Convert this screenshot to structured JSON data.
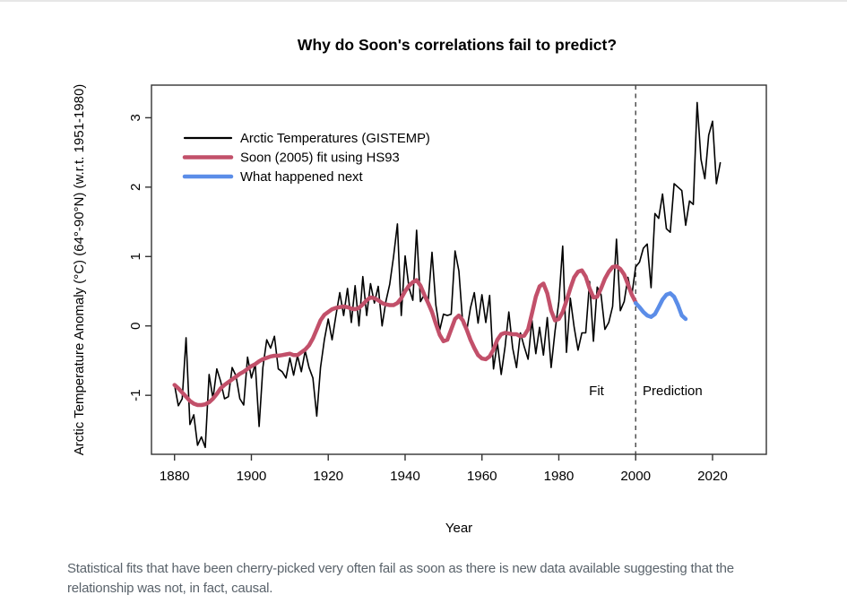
{
  "page": {
    "caption": "Statistical fits that have been cherry-picked very often fail as soon as there is new data available suggesting that the relationship was not, in fact, causal."
  },
  "chart_data": {
    "type": "line",
    "title": "Why do Soon's correlations fail to predict?",
    "xlabel": "Year",
    "ylabel": "Arctic Temperature Anomaly (°C) (64°-90°N) (w.r.t. 1951-1980)",
    "xlim": [
      1874,
      2034
    ],
    "ylim": [
      -1.85,
      3.47
    ],
    "x_ticks": [
      1880,
      1900,
      1920,
      1940,
      1960,
      1980,
      2000,
      2020
    ],
    "y_ticks": [
      -1,
      0,
      1,
      2,
      3
    ],
    "grid": false,
    "legend_position": "top-left-inside",
    "frame_color": "#333333",
    "vline": {
      "x": 2000,
      "style": "dashed",
      "color": "#444444"
    },
    "annotations": [
      {
        "text": "Fit",
        "x": 1989.8,
        "y": -1.0,
        "color": "#c2506a"
      },
      {
        "text": "Prediction",
        "x": 2009.6,
        "y": -1.0,
        "color": "#5b8de8"
      }
    ],
    "series": [
      {
        "name": "Arctic Temperatures (GISTEMP)",
        "color": "#000000",
        "line_width": 1.6,
        "x_start": 1880,
        "x_step": 1,
        "values": [
          -0.85,
          -1.15,
          -1.05,
          -0.17,
          -1.42,
          -1.28,
          -1.72,
          -1.6,
          -1.75,
          -0.7,
          -1.05,
          -0.62,
          -0.8,
          -1.05,
          -1.02,
          -0.6,
          -0.72,
          -1.05,
          -1.14,
          -0.45,
          -0.75,
          -0.55,
          -1.45,
          -0.6,
          -0.2,
          -0.32,
          -0.15,
          -0.62,
          -0.66,
          -0.75,
          -0.46,
          -0.71,
          -0.43,
          -0.66,
          -0.36,
          -0.6,
          -0.75,
          -1.3,
          -0.6,
          -0.2,
          0.1,
          -0.2,
          0.15,
          0.48,
          0.15,
          0.54,
          0.05,
          0.58,
          0.0,
          0.71,
          0.15,
          0.61,
          0.33,
          0.57,
          0.0,
          0.35,
          0.6,
          1.0,
          1.47,
          0.15,
          1.01,
          0.55,
          0.37,
          1.38,
          0.35,
          0.45,
          0.35,
          1.06,
          0.3,
          -0.06,
          0.17,
          0.15,
          0.17,
          1.08,
          0.79,
          0.03,
          -0.08,
          0.26,
          0.48,
          0.04,
          0.45,
          0.05,
          0.44,
          -0.62,
          -0.24,
          -0.7,
          -0.3,
          0.2,
          -0.32,
          -0.6,
          -0.1,
          -0.3,
          -0.48,
          0.08,
          -0.4,
          -0.02,
          -0.42,
          0.12,
          -0.6,
          -0.08,
          0.35,
          1.15,
          -0.38,
          0.4,
          -0.02,
          -0.35,
          -0.1,
          -0.1,
          0.64,
          -0.22,
          0.56,
          0.45,
          -0.05,
          0.05,
          0.28,
          1.25,
          0.22,
          0.35,
          0.7,
          0.44,
          0.85,
          0.92,
          1.12,
          1.18,
          0.55,
          1.62,
          1.55,
          1.9,
          1.4,
          1.35,
          2.05,
          2.0,
          1.95,
          1.45,
          1.8,
          1.75,
          3.22,
          2.4,
          2.12,
          2.75,
          2.95,
          2.05,
          2.35
        ]
      },
      {
        "name": "Soon (2005) fit using HS93",
        "color": "#c2506a",
        "line_width": 4.5,
        "x_start": 1880,
        "x_step": 1,
        "values": [
          -0.85,
          -0.9,
          -0.96,
          -1.02,
          -1.08,
          -1.12,
          -1.14,
          -1.14,
          -1.13,
          -1.1,
          -1.05,
          -0.98,
          -0.9,
          -0.85,
          -0.81,
          -0.77,
          -0.73,
          -0.69,
          -0.66,
          -0.62,
          -0.58,
          -0.55,
          -0.51,
          -0.48,
          -0.46,
          -0.44,
          -0.43,
          -0.43,
          -0.42,
          -0.41,
          -0.4,
          -0.42,
          -0.42,
          -0.38,
          -0.34,
          -0.28,
          -0.18,
          -0.05,
          0.08,
          0.16,
          0.2,
          0.24,
          0.26,
          0.27,
          0.28,
          0.27,
          0.25,
          0.24,
          0.26,
          0.31,
          0.37,
          0.41,
          0.4,
          0.37,
          0.33,
          0.31,
          0.3,
          0.3,
          0.33,
          0.4,
          0.5,
          0.58,
          0.63,
          0.66,
          0.58,
          0.45,
          0.33,
          0.2,
          0.03,
          -0.13,
          -0.22,
          -0.2,
          -0.05,
          0.1,
          0.15,
          0.08,
          -0.05,
          -0.2,
          -0.32,
          -0.42,
          -0.47,
          -0.48,
          -0.44,
          -0.34,
          -0.2,
          -0.12,
          -0.1,
          -0.11,
          -0.12,
          -0.12,
          -0.15,
          -0.14,
          -0.05,
          0.18,
          0.42,
          0.57,
          0.61,
          0.47,
          0.22,
          0.08,
          0.1,
          0.2,
          0.36,
          0.54,
          0.7,
          0.78,
          0.8,
          0.71,
          0.54,
          0.41,
          0.42,
          0.54,
          0.68,
          0.78,
          0.85,
          0.86,
          0.82,
          0.74,
          0.6,
          0.45,
          0.34
        ]
      },
      {
        "name": "What happened next",
        "color": "#5b8de8",
        "line_width": 4.5,
        "x_start": 2000,
        "x_step": 1,
        "values": [
          0.33,
          0.27,
          0.2,
          0.15,
          0.13,
          0.17,
          0.27,
          0.38,
          0.45,
          0.47,
          0.42,
          0.3,
          0.15,
          0.1
        ]
      }
    ]
  }
}
